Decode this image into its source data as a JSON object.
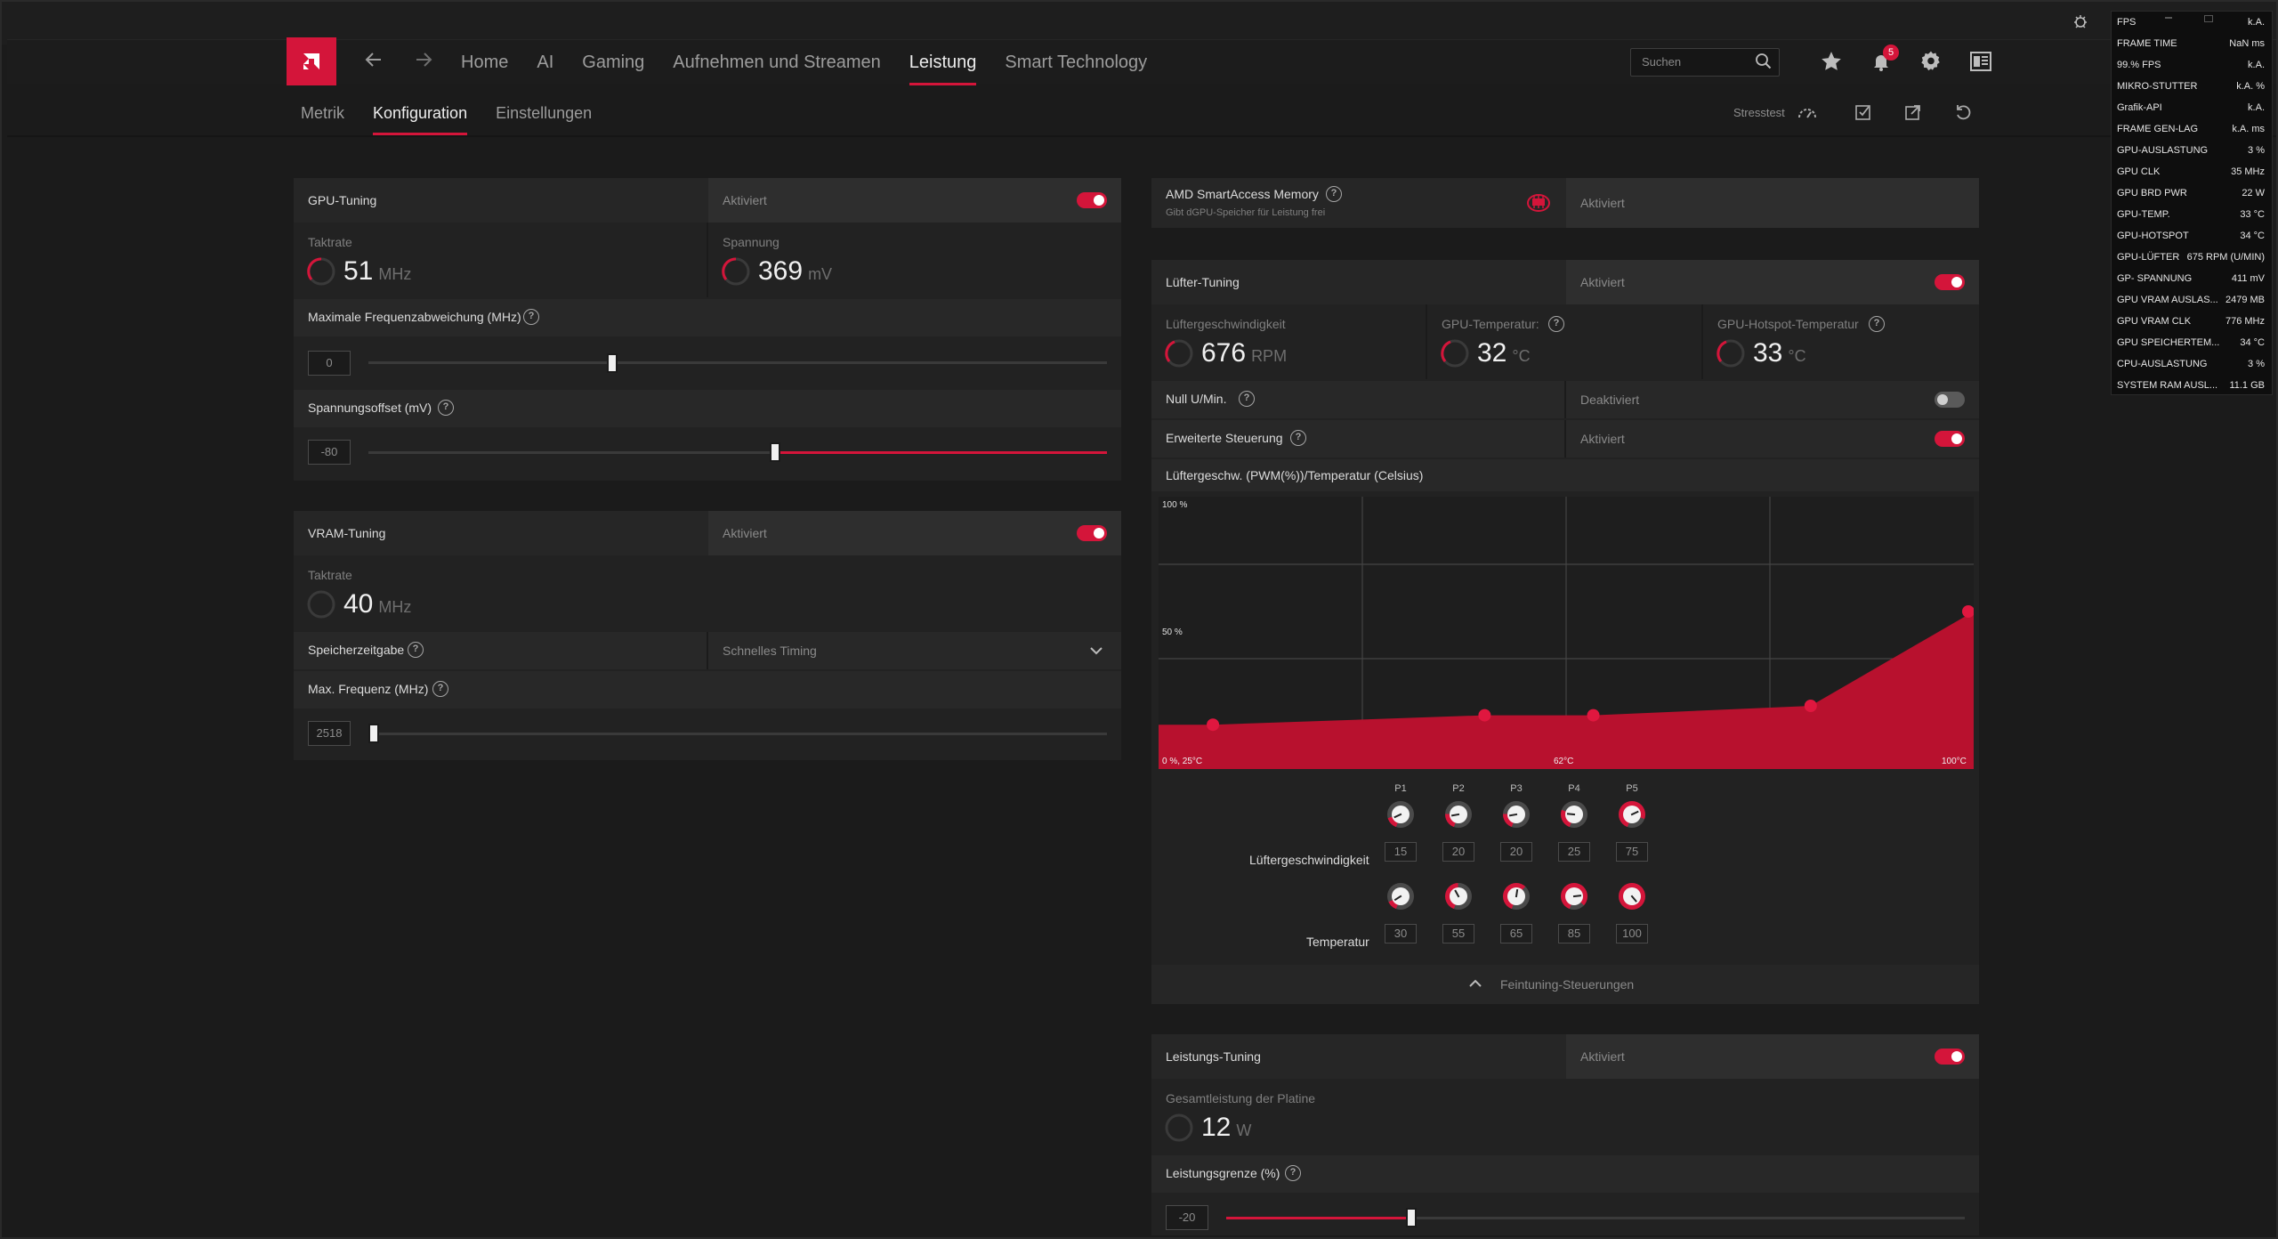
{
  "nav": {
    "links": [
      "Home",
      "AI",
      "Gaming",
      "Aufnehmen und Streamen",
      "Leistung",
      "Smart Technology"
    ],
    "active": "Leistung",
    "search_placeholder": "Suchen",
    "notification_count": "5"
  },
  "subnav": {
    "tabs": [
      "Metrik",
      "Konfiguration",
      "Einstellungen"
    ],
    "active": "Konfiguration",
    "stresstest_label": "Stresstest"
  },
  "gpu_tuning": {
    "title": "GPU-Tuning",
    "status": "Aktiviert",
    "enabled": true,
    "clock_label": "Taktrate",
    "clock_value": "51",
    "clock_unit": "MHz",
    "voltage_label": "Spannung",
    "voltage_value": "369",
    "voltage_unit": "mV",
    "max_freq_label": "Maximale Frequenzabweichung (MHz)",
    "max_freq_value": "0",
    "max_freq_fraction": 0.33,
    "voltage_offset_label": "Spannungsoffset (mV)",
    "voltage_offset_value": "-80",
    "voltage_offset_fraction": 0.55
  },
  "vram_tuning": {
    "title": "VRAM-Tuning",
    "status": "Aktiviert",
    "enabled": true,
    "clock_label": "Taktrate",
    "clock_value": "40",
    "clock_unit": "MHz",
    "timing_label": "Speicherzeitgabe",
    "timing_value": "Schnelles Timing",
    "max_freq_label": "Max. Frequenz (MHz)",
    "max_freq_value": "2518",
    "max_freq_fraction": 0.0
  },
  "smart_access": {
    "title": "AMD SmartAccess Memory",
    "subtitle": "Gibt dGPU-Speicher für Leistung frei",
    "status": "Aktiviert"
  },
  "fan_tuning": {
    "title": "Lüfter-Tuning",
    "status": "Aktiviert",
    "enabled": true,
    "fan_speed_label": "Lüftergeschwindigkeit",
    "fan_speed_value": "676",
    "fan_speed_unit": "RPM",
    "gpu_temp_label": "GPU-Temperatur:",
    "gpu_temp_value": "32",
    "gpu_temp_unit": "°C",
    "hotspot_label": "GPU-Hotspot-Temperatur",
    "hotspot_value": "33",
    "hotspot_unit": "°C",
    "zero_rpm_label": "Null U/Min.",
    "zero_rpm_status": "Deaktiviert",
    "zero_rpm_enabled": false,
    "advanced_label": "Erweiterte Steuerung",
    "advanced_status": "Aktiviert",
    "advanced_enabled": true,
    "curve_label": "Lüftergeschw. (PWM(%))/Temperatur (Celsius)",
    "fan_speed_row_label": "Lüftergeschwindigkeit",
    "temp_row_label": "Temperatur",
    "finetune_label": "Feintuning-Steuerungen"
  },
  "chart_data": {
    "type": "area",
    "ytick_top": "100 %",
    "ytick_mid": "50 %",
    "xtick_left": "0 %, 25°C",
    "xtick_mid": "62°C",
    "xtick_right": "100°C",
    "xlim": [
      25,
      100
    ],
    "ylim": [
      0,
      100
    ],
    "points": [
      {
        "name": "P1",
        "x": 30,
        "y": 15
      },
      {
        "name": "P2",
        "x": 55,
        "y": 20
      },
      {
        "name": "P3",
        "x": 65,
        "y": 20
      },
      {
        "name": "P4",
        "x": 85,
        "y": 25
      },
      {
        "name": "P5",
        "x": 100,
        "y": 75
      }
    ],
    "accent": "#d4153a"
  },
  "power_tuning": {
    "title": "Leistungs-Tuning",
    "status": "Aktiviert",
    "enabled": true,
    "board_power_label": "Gesamtleistung der Platine",
    "board_power_value": "12",
    "board_power_unit": "W",
    "power_limit_label": "Leistungsgrenze (%)",
    "power_limit_value": "-20",
    "power_limit_fraction": 0.25
  },
  "overlay": {
    "rows": [
      {
        "label": "FPS",
        "value": "k.A."
      },
      {
        "label": "FRAME TIME",
        "value": "NaN ms"
      },
      {
        "label": "99.% FPS",
        "value": "k.A."
      },
      {
        "label": "MIKRO-STUTTER",
        "value": "k.A. %"
      },
      {
        "label": "Grafik-API",
        "value": "k.A."
      },
      {
        "label": "FRAME GEN-LAG",
        "value": "k.A. ms"
      },
      {
        "label": "GPU-AUSLASTUNG",
        "value": "3 %"
      },
      {
        "label": "GPU CLK",
        "value": "35 MHz"
      },
      {
        "label": "GPU BRD PWR",
        "value": "22 W"
      },
      {
        "label": "GPU-TEMP.",
        "value": "33 °C"
      },
      {
        "label": "GPU-HOTSPOT",
        "value": "34 °C"
      },
      {
        "label": "GPU-LÜFTER",
        "value": "675 RPM (U/MIN)"
      },
      {
        "label": "GP- SPANNUNG",
        "value": "411 mV"
      },
      {
        "label": "GPU VRAM AUSLAS...",
        "value": "2479 MB"
      },
      {
        "label": "GPU VRAM CLK",
        "value": "776 MHz"
      },
      {
        "label": "GPU SPEICHERTEM...",
        "value": "34 °C"
      },
      {
        "label": "CPU-AUSLASTUNG",
        "value": "3 %"
      },
      {
        "label": "SYSTEM RAM AUSL...",
        "value": "11.1 GB"
      }
    ]
  }
}
